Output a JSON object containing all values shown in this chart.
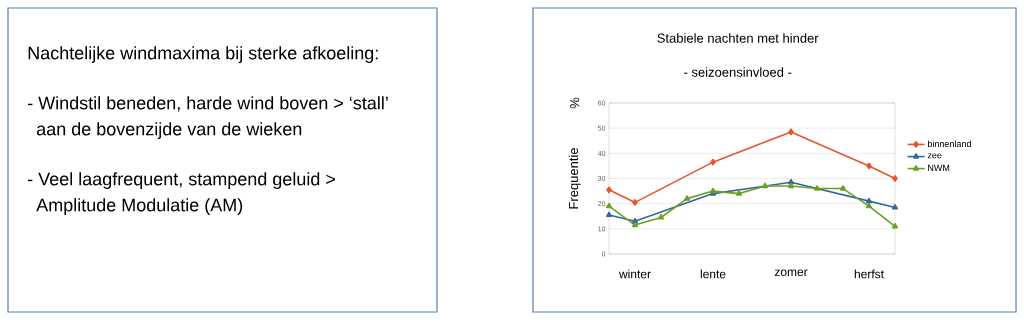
{
  "chart_data": [
    {
      "type": "other",
      "title": "Nachtelijke windmaxima bij sterke afkoeling:",
      "annotations": [
        "- Windstil beneden, harde wind boven > ‘stall’ aan de bovenzijde van de wieken",
        "- Veel laagfrequent, stampend geluid > Amplitude Modulatie (AM)"
      ]
    },
    {
      "type": "line",
      "title": "Stabiele nachten met hinder",
      "subtitle": "- seizoensinvloed -",
      "ylabel": "Frequentie",
      "annotations": [
        "%"
      ],
      "categories": [
        null,
        "winter",
        null,
        null,
        "lente",
        null,
        null,
        "zomer",
        null,
        null,
        "herfst",
        null
      ],
      "ylim": [
        0,
        60
      ],
      "yticks": [
        0,
        10,
        20,
        30,
        40,
        50,
        60
      ],
      "grid": "y",
      "legend": "right",
      "line_style": "solid",
      "series": [
        {
          "name": "binnenland",
          "color": "#e8552a",
          "marker": "diamond",
          "values": [
            25.5,
            20.5,
            null,
            null,
            36.5,
            null,
            null,
            48.5,
            null,
            null,
            35,
            30
          ]
        },
        {
          "name": "zee",
          "color": "#3465a4",
          "marker": "triangle",
          "values": [
            15.5,
            13,
            null,
            null,
            24,
            null,
            null,
            28.5,
            null,
            null,
            21,
            18.5
          ]
        },
        {
          "name": "NWM",
          "color": "#6aa121",
          "marker": "triangle",
          "values": [
            19,
            11.5,
            14.5,
            22,
            25,
            24,
            27,
            27,
            26,
            26,
            19,
            11
          ]
        }
      ]
    }
  ]
}
